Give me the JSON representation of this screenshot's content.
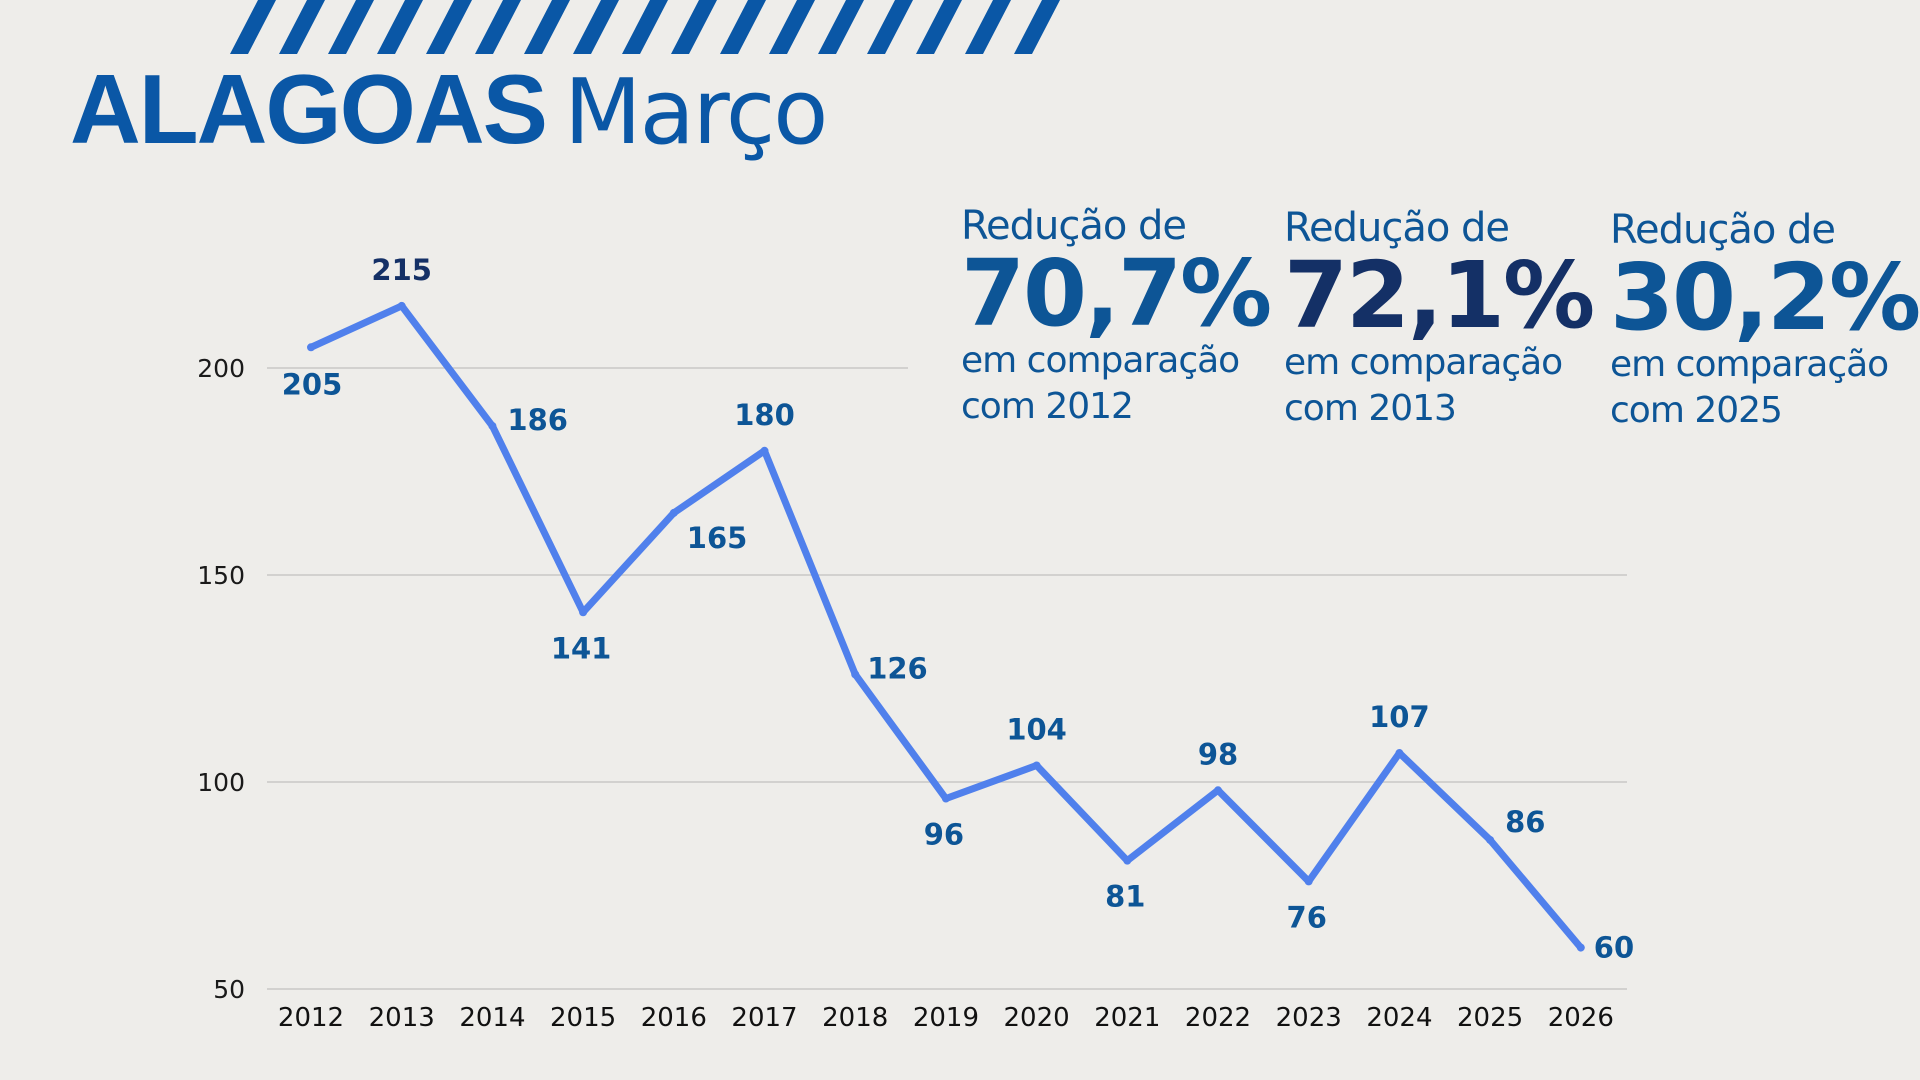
{
  "header": {
    "title_strong": "ALAGOAS",
    "title_light": "Março",
    "stripe_count": 17
  },
  "colors": {
    "background": "#eeedea",
    "title": "#0a57a6",
    "line": "#5080ec",
    "label": "#0d5596",
    "highlight": "#143066",
    "grid": "#c8c8c6"
  },
  "stats": [
    {
      "lead": "Redução de",
      "value": "70,7%",
      "line1": "em comparação",
      "line2": "com 2012"
    },
    {
      "lead": "Redução de",
      "value": "72,1%",
      "line1": "em comparação",
      "line2": "com 2013"
    },
    {
      "lead": "Redução de",
      "value": "30,2%",
      "line1": "em comparação",
      "line2": "com 2025"
    }
  ],
  "chart_data": {
    "type": "line",
    "title": "ALAGOAS Março",
    "xlabel": "",
    "ylabel": "",
    "categories": [
      "2012",
      "2013",
      "2014",
      "2015",
      "2016",
      "2017",
      "2018",
      "2019",
      "2020",
      "2021",
      "2022",
      "2023",
      "2024",
      "2025",
      "2026"
    ],
    "series": [
      {
        "name": "Alagoas - Março",
        "values": [
          205,
          215,
          186,
          141,
          165,
          180,
          126,
          96,
          104,
          81,
          98,
          76,
          107,
          86,
          60
        ]
      }
    ],
    "yticks": [
      50,
      100,
      150,
      200
    ],
    "ylim": [
      50,
      215
    ],
    "grid": true,
    "legend": "none",
    "label_positions": [
      "below",
      "above",
      "right",
      "below",
      "below-right",
      "above",
      "right",
      "below",
      "above",
      "below",
      "above",
      "below",
      "above",
      "right",
      "right"
    ],
    "highlight_index": 1
  }
}
